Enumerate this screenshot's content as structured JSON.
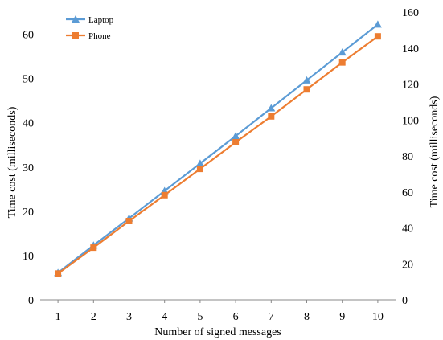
{
  "chart_data": {
    "type": "line",
    "x": [
      1,
      2,
      3,
      4,
      5,
      6,
      7,
      8,
      9,
      10
    ],
    "xlabel": "Number of signed messages",
    "ylabel_left": "Time cost (milliseconds)",
    "ylabel_right": "Time cost (milliseconds)",
    "ylim_left": [
      0,
      65
    ],
    "ylim_right": [
      0,
      160
    ],
    "yticks_left": [
      0,
      10,
      20,
      30,
      40,
      50,
      60
    ],
    "yticks_right": [
      0,
      20,
      40,
      60,
      80,
      100,
      120,
      140,
      160
    ],
    "grid": false,
    "legend_position": "top-left",
    "series": [
      {
        "name": "Laptop",
        "axis": "left",
        "marker": "triangle",
        "color": "#5B9BD5",
        "values": [
          6.1,
          12.3,
          18.4,
          24.6,
          30.8,
          37.0,
          43.3,
          49.6,
          55.9,
          62.2
        ]
      },
      {
        "name": "Phone",
        "axis": "right",
        "marker": "square",
        "color": "#ED7D31",
        "values": [
          14.6,
          29.0,
          43.8,
          58.2,
          72.8,
          87.6,
          102.0,
          117.0,
          132.0,
          146.5
        ]
      }
    ]
  }
}
